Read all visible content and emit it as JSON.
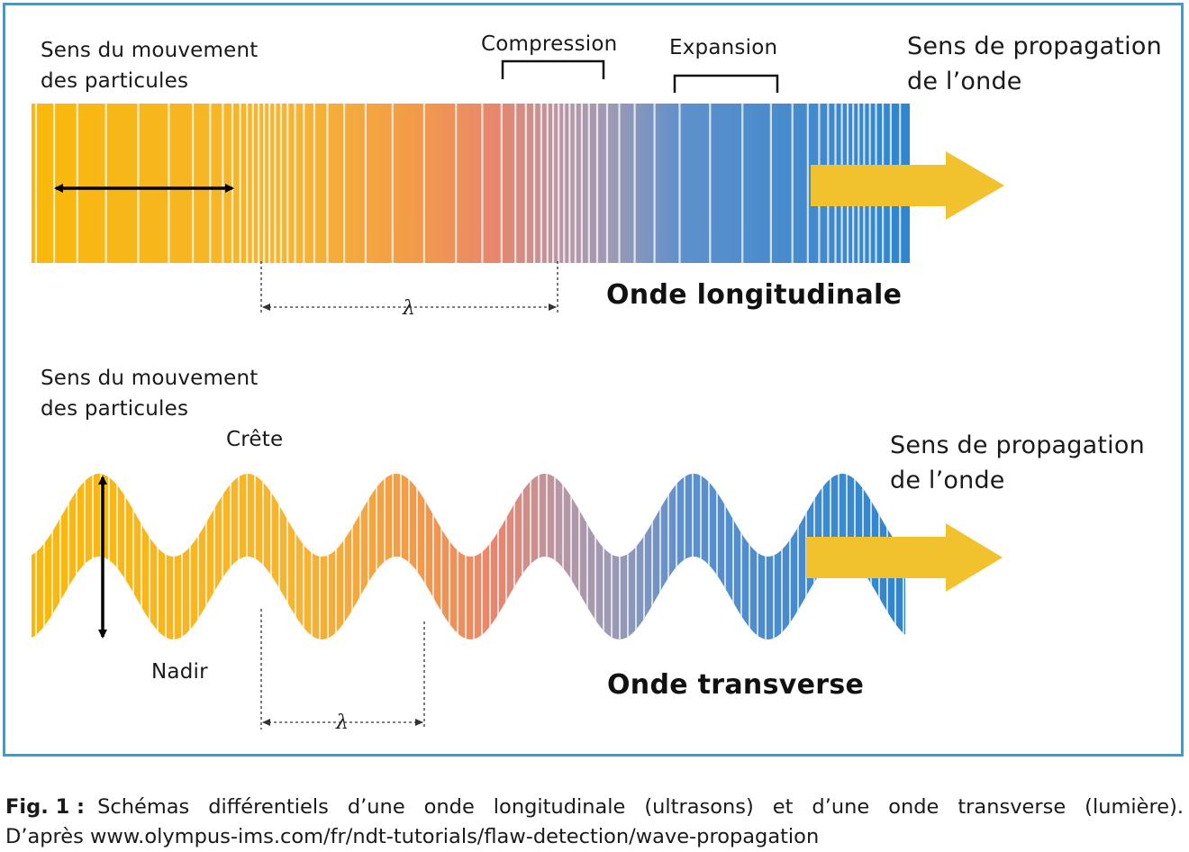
{
  "longitudinal": {
    "particle_motion_label_line1": "Sens du mouvement",
    "particle_motion_label_line2": "des particules",
    "compression_label": "Compression",
    "expansion_label": "Expansion",
    "propagation_label_line1": "Sens de propagation",
    "propagation_label_line2": "de l’onde",
    "wavelength_symbol": "λ",
    "title": "Onde longitudinale"
  },
  "transverse": {
    "particle_motion_label_line1": "Sens du mouvement",
    "particle_motion_label_line2": "des particules",
    "crest_label": "Crête",
    "trough_label": "Nadir",
    "propagation_label_line1": "Sens de propagation",
    "propagation_label_line2": "de l’onde",
    "wavelength_symbol": "λ",
    "title": "Onde transverse"
  },
  "caption": {
    "fig_label": "Fig. 1 :",
    "text_line1": "Schémas différentiels d’une onde longitudinale (ultrasons) et d’une onde transverse (lumière).",
    "text_line2": "D’après www.olympus-ims.com/fr/ndt-tutorials/flaw-detection/wave-propagation"
  },
  "colors": {
    "frame": "#2aa3dc",
    "wave_start": "#f8b80a",
    "wave_mid_warm": "#f29a4a",
    "wave_mid": "#e7866e",
    "wave_mid_cool": "#9d9ab4",
    "wave_end": "#2d86cf",
    "arrow_fill": "#f2c12e"
  }
}
